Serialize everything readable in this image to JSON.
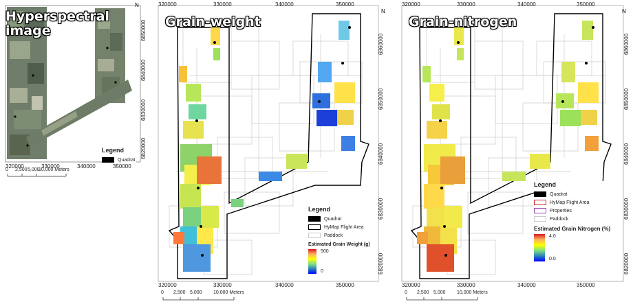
{
  "panels": {
    "hyper": {
      "title_line1": "Hyperspectral",
      "title_line2": "image",
      "legend_title": "Legend",
      "legend_items": [
        "Quadrat"
      ],
      "x_ticks": [
        "320000",
        "330000",
        "340000",
        "350000"
      ],
      "y_ticks": [
        "6850000",
        "6840000",
        "6830000",
        "6820000"
      ],
      "scale_ticks": [
        "0",
        "2,500",
        "5,000",
        "10,000 Meters"
      ]
    },
    "weight": {
      "title": "Grain-weight",
      "legend_title": "Legend",
      "legend_items": [
        "Quadrat",
        "HyMap Flight Area",
        "Paddock"
      ],
      "ramp_title": "Estimated Grain Weight (g)",
      "ramp_max": "500",
      "ramp_min": "0",
      "x_ticks": [
        "320000",
        "330000",
        "340000",
        "350000"
      ],
      "x_ticks_top": [
        "320000",
        "330000",
        "340000",
        "350000"
      ],
      "y_ticks_right": [
        "6860000",
        "6850000",
        "6840000",
        "6830000",
        "6820000"
      ],
      "scale_ticks": [
        "0",
        "2,500",
        "5,000",
        "10,000 Meters"
      ]
    },
    "nitrogen": {
      "title": "Grain-nitrogen",
      "legend_title": "Legend",
      "legend_items": [
        "Quadrat",
        "HyMap Flight Area",
        "Properties",
        "Paddock"
      ],
      "ramp_title": "Estimated Grain Nitrogen (%)",
      "ramp_max": "4.0",
      "ramp_min": "0.0",
      "x_ticks": [
        "320000",
        "330000",
        "340000",
        "350000"
      ],
      "x_ticks_top": [
        "320000",
        "330000",
        "340000",
        "350000"
      ],
      "y_ticks_right": [
        "6860000",
        "6850000",
        "6840000",
        "6830000",
        "6820000"
      ],
      "scale_ticks": [
        "0",
        "2,500",
        "5,000",
        "10,000 Meters"
      ]
    }
  },
  "north_label": "N",
  "colors": {
    "quadrat": "#000000",
    "flight_area_outline": "#000000",
    "flight_area_nitrogen": "#cc2222",
    "properties": "#9b3fb0",
    "paddock": "#cccccc",
    "ramp_high": "#d7191c",
    "ramp_mid": "#ffff00",
    "ramp_low": "#2b83ba"
  }
}
